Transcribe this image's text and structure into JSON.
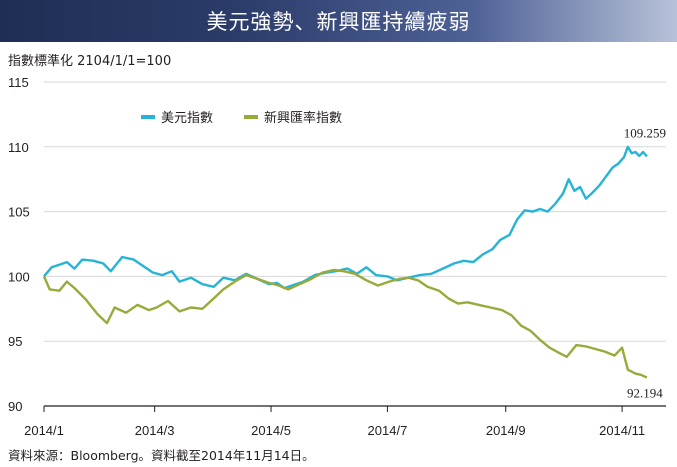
{
  "banner": {
    "title": "美元強勢、新興匯持續疲弱"
  },
  "subtitle": "指數標準化  2104/1/1=100",
  "source": "資料來源：Bloomberg。資料截至2014年11月14日。",
  "colors": {
    "usd": "#25b4d8",
    "em": "#98aa3a",
    "grid": "#d7d7d7",
    "axis": "#231f20"
  },
  "chart_data": {
    "type": "line",
    "ylim": [
      90,
      115
    ],
    "yticks": [
      90,
      95,
      100,
      105,
      110,
      115
    ],
    "xlim": [
      "2014-01-02",
      "2014-11-24"
    ],
    "xticks": [
      {
        "date": "2014-01-01",
        "label": "2014/1"
      },
      {
        "date": "2014-03-01",
        "label": "2014/3"
      },
      {
        "date": "2014-05-01",
        "label": "2014/5"
      },
      {
        "date": "2014-07-01",
        "label": "2014/7"
      },
      {
        "date": "2014-09-01",
        "label": "2014/9"
      },
      {
        "date": "2014-11-01",
        "label": "2014/11"
      }
    ],
    "legend_position": "top-left",
    "grid": true,
    "series": [
      {
        "name": "美元指數",
        "color": "#25b4d8",
        "end_label": "109.259",
        "points": [
          [
            "2014-01-02",
            100.0
          ],
          [
            "2014-01-06",
            100.7
          ],
          [
            "2014-01-10",
            100.9
          ],
          [
            "2014-01-14",
            101.1
          ],
          [
            "2014-01-18",
            100.6
          ],
          [
            "2014-01-22",
            101.3
          ],
          [
            "2014-01-28",
            101.2
          ],
          [
            "2014-02-02",
            101.0
          ],
          [
            "2014-02-06",
            100.4
          ],
          [
            "2014-02-12",
            101.5
          ],
          [
            "2014-02-18",
            101.3
          ],
          [
            "2014-02-22",
            100.9
          ],
          [
            "2014-02-28",
            100.3
          ],
          [
            "2014-03-05",
            100.1
          ],
          [
            "2014-03-10",
            100.4
          ],
          [
            "2014-03-14",
            99.6
          ],
          [
            "2014-03-20",
            99.9
          ],
          [
            "2014-03-26",
            99.4
          ],
          [
            "2014-04-01",
            99.2
          ],
          [
            "2014-04-06",
            99.9
          ],
          [
            "2014-04-12",
            99.7
          ],
          [
            "2014-04-18",
            100.2
          ],
          [
            "2014-04-24",
            99.8
          ],
          [
            "2014-04-30",
            99.4
          ],
          [
            "2014-05-04",
            99.5
          ],
          [
            "2014-05-08",
            99.1
          ],
          [
            "2014-05-12",
            99.3
          ],
          [
            "2014-05-18",
            99.6
          ],
          [
            "2014-05-24",
            100.1
          ],
          [
            "2014-05-30",
            100.3
          ],
          [
            "2014-06-04",
            100.4
          ],
          [
            "2014-06-10",
            100.6
          ],
          [
            "2014-06-15",
            100.2
          ],
          [
            "2014-06-20",
            100.7
          ],
          [
            "2014-06-25",
            100.1
          ],
          [
            "2014-07-01",
            100.0
          ],
          [
            "2014-07-06",
            99.7
          ],
          [
            "2014-07-12",
            99.9
          ],
          [
            "2014-07-18",
            100.1
          ],
          [
            "2014-07-24",
            100.2
          ],
          [
            "2014-07-30",
            100.6
          ],
          [
            "2014-08-05",
            101.0
          ],
          [
            "2014-08-10",
            101.2
          ],
          [
            "2014-08-15",
            101.1
          ],
          [
            "2014-08-20",
            101.7
          ],
          [
            "2014-08-25",
            102.1
          ],
          [
            "2014-08-29",
            102.8
          ],
          [
            "2014-09-03",
            103.2
          ],
          [
            "2014-09-07",
            104.4
          ],
          [
            "2014-09-11",
            105.1
          ],
          [
            "2014-09-15",
            105.0
          ],
          [
            "2014-09-19",
            105.2
          ],
          [
            "2014-09-23",
            105.0
          ],
          [
            "2014-09-27",
            105.6
          ],
          [
            "2014-10-01",
            106.4
          ],
          [
            "2014-10-04",
            107.5
          ],
          [
            "2014-10-07",
            106.6
          ],
          [
            "2014-10-10",
            106.9
          ],
          [
            "2014-10-13",
            106.0
          ],
          [
            "2014-10-16",
            106.4
          ],
          [
            "2014-10-20",
            107.0
          ],
          [
            "2014-10-23",
            107.6
          ],
          [
            "2014-10-27",
            108.4
          ],
          [
            "2014-10-30",
            108.7
          ],
          [
            "2014-11-02",
            109.2
          ],
          [
            "2014-11-04",
            110.0
          ],
          [
            "2014-11-06",
            109.5
          ],
          [
            "2014-11-08",
            109.6
          ],
          [
            "2014-11-10",
            109.3
          ],
          [
            "2014-11-12",
            109.6
          ],
          [
            "2014-11-14",
            109.259
          ]
        ]
      },
      {
        "name": "新興匯率指數",
        "color": "#98aa3a",
        "end_label": "92.194",
        "points": [
          [
            "2014-01-02",
            100.0
          ],
          [
            "2014-01-05",
            99.0
          ],
          [
            "2014-01-10",
            98.9
          ],
          [
            "2014-01-14",
            99.6
          ],
          [
            "2014-01-18",
            99.1
          ],
          [
            "2014-01-24",
            98.2
          ],
          [
            "2014-01-30",
            97.1
          ],
          [
            "2014-02-04",
            96.4
          ],
          [
            "2014-02-08",
            97.6
          ],
          [
            "2014-02-14",
            97.2
          ],
          [
            "2014-02-20",
            97.8
          ],
          [
            "2014-02-26",
            97.4
          ],
          [
            "2014-03-02",
            97.6
          ],
          [
            "2014-03-08",
            98.1
          ],
          [
            "2014-03-14",
            97.3
          ],
          [
            "2014-03-20",
            97.6
          ],
          [
            "2014-03-26",
            97.5
          ],
          [
            "2014-04-01",
            98.3
          ],
          [
            "2014-04-06",
            99.0
          ],
          [
            "2014-04-12",
            99.6
          ],
          [
            "2014-04-18",
            100.1
          ],
          [
            "2014-04-24",
            99.8
          ],
          [
            "2014-04-30",
            99.5
          ],
          [
            "2014-05-05",
            99.3
          ],
          [
            "2014-05-10",
            99.0
          ],
          [
            "2014-05-16",
            99.4
          ],
          [
            "2014-05-22",
            99.8
          ],
          [
            "2014-05-28",
            100.3
          ],
          [
            "2014-06-03",
            100.5
          ],
          [
            "2014-06-08",
            100.4
          ],
          [
            "2014-06-14",
            100.2
          ],
          [
            "2014-06-20",
            99.7
          ],
          [
            "2014-06-26",
            99.3
          ],
          [
            "2014-07-02",
            99.6
          ],
          [
            "2014-07-07",
            99.8
          ],
          [
            "2014-07-12",
            99.9
          ],
          [
            "2014-07-17",
            99.7
          ],
          [
            "2014-07-22",
            99.2
          ],
          [
            "2014-07-28",
            98.9
          ],
          [
            "2014-08-02",
            98.3
          ],
          [
            "2014-08-07",
            97.9
          ],
          [
            "2014-08-12",
            98.0
          ],
          [
            "2014-08-18",
            97.8
          ],
          [
            "2014-08-24",
            97.6
          ],
          [
            "2014-08-30",
            97.4
          ],
          [
            "2014-09-04",
            97.0
          ],
          [
            "2014-09-09",
            96.2
          ],
          [
            "2014-09-14",
            95.8
          ],
          [
            "2014-09-19",
            95.1
          ],
          [
            "2014-09-24",
            94.5
          ],
          [
            "2014-09-29",
            94.1
          ],
          [
            "2014-10-03",
            93.8
          ],
          [
            "2014-10-08",
            94.7
          ],
          [
            "2014-10-13",
            94.6
          ],
          [
            "2014-10-18",
            94.4
          ],
          [
            "2014-10-23",
            94.2
          ],
          [
            "2014-10-28",
            93.9
          ],
          [
            "2014-11-01",
            94.5
          ],
          [
            "2014-11-04",
            92.8
          ],
          [
            "2014-11-08",
            92.5
          ],
          [
            "2014-11-11",
            92.4
          ],
          [
            "2014-11-14",
            92.194
          ]
        ]
      }
    ]
  }
}
